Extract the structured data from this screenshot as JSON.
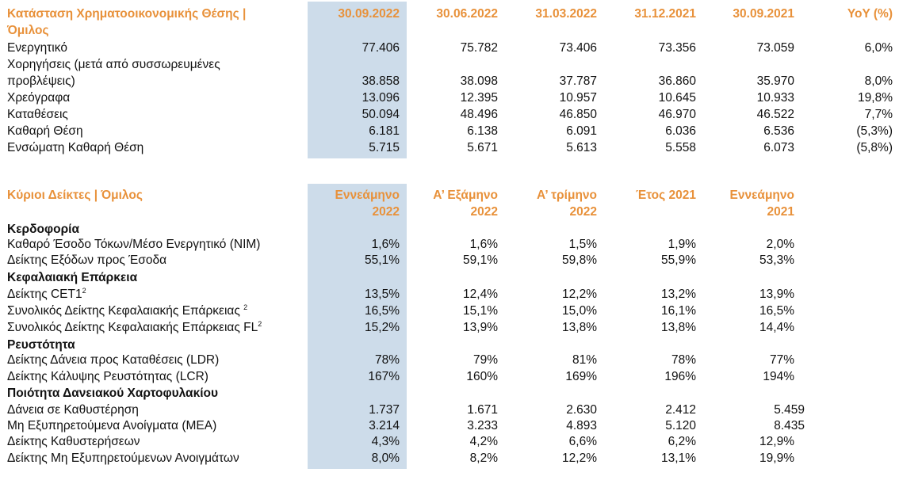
{
  "table1": {
    "title_line1": "Κατάσταση Χρηματοοικονομικής Θέσης |",
    "title_line2": "Όμιλος",
    "columns": [
      "30.09.2022",
      "30.06.2022",
      "31.03.2022",
      "31.12.2021",
      "30.09.2021",
      "YoY (%)"
    ],
    "rows": [
      {
        "label": "Ενεργητικό",
        "values": [
          "77.406",
          "75.782",
          "73.406",
          "73.356",
          "73.059",
          "6,0%"
        ]
      },
      {
        "label": "Χορηγήσεις (μετά από συσσωρευμένες",
        "label2": "προβλέψεις)",
        "values": [
          "38.858",
          "38.098",
          "37.787",
          "36.860",
          "35.970",
          "8,0%"
        ]
      },
      {
        "label": "Χρεόγραφα",
        "values": [
          "13.096",
          "12.395",
          "10.957",
          "10.645",
          "10.933",
          "19,8%"
        ]
      },
      {
        "label": "Καταθέσεις",
        "values": [
          "50.094",
          "48.496",
          "46.850",
          "46.970",
          "46.522",
          "7,7%"
        ]
      },
      {
        "label": "Καθαρή Θέση",
        "values": [
          "6.181",
          "6.138",
          "6.091",
          "6.036",
          "6.536",
          "(5,3%)"
        ]
      },
      {
        "label": "Ενσώματη Καθαρή Θέση",
        "values": [
          "5.715",
          "5.671",
          "5.613",
          "5.558",
          "6.073",
          "(5,8%)"
        ]
      }
    ]
  },
  "table2": {
    "title": "Κύριοι Δείκτες | Όμιλος",
    "columns": [
      {
        "line1": "Εννεάμηνο",
        "line2": "2022"
      },
      {
        "line1": "Α’ Εξάμηνο",
        "line2": "2022"
      },
      {
        "line1": "Α’ τρίμηνο",
        "line2": "2022"
      },
      {
        "line1": "Έτος 2021",
        "line2": ""
      },
      {
        "line1": "Εννεάμηνο",
        "line2": "2021"
      }
    ],
    "sections": {
      "profitability": "Κερδοφορία",
      "capital": "Κεφαλαιακή Επάρκεια",
      "liquidity": "Ρευστότητα",
      "quality": "Ποιότητα Δανειακού Χαρτοφυλακίου"
    },
    "rows": {
      "nim": {
        "label": "Καθαρό Έσοδο Τόκων/Μέσο Ενεργητικό (NIM)",
        "values": [
          "1,6%",
          "1,6%",
          "1,5%",
          "1,9%",
          "2,0%"
        ]
      },
      "cost_income": {
        "label": "Δείκτης Εξόδων προς Έσοδα",
        "values": [
          "55,1%",
          "59,1%",
          "59,8%",
          "55,9%",
          "53,3%"
        ]
      },
      "cet1": {
        "label": "Δείκτης CET1",
        "sup": "2",
        "values": [
          "13,5%",
          "12,4%",
          "12,2%",
          "13,2%",
          "13,9%"
        ]
      },
      "total_car": {
        "label": "Συνολικός Δείκτης Κεφαλαιακής Επάρκειας ",
        "sup": "2",
        "values": [
          "16,5%",
          "15,1%",
          "15,0%",
          "16,1%",
          "16,5%"
        ]
      },
      "total_car_fl": {
        "label": "Συνολικός Δείκτης Κεφαλαιακής Επάρκειας FL",
        "sup": "2",
        "values": [
          "15,2%",
          "13,9%",
          "13,8%",
          "13,8%",
          "14,4%"
        ]
      },
      "ldr": {
        "label": "Δείκτης Δάνεια προς Καταθέσεις (LDR)",
        "values": [
          "78%",
          "79%",
          "81%",
          "78%",
          "77%"
        ]
      },
      "lcr": {
        "label": "Δείκτης Κάλυψης Ρευστότητας (LCR)",
        "values": [
          "167%",
          "160%",
          "169%",
          "196%",
          "194%"
        ]
      },
      "arrears": {
        "label": "Δάνεια σε Καθυστέρηση",
        "values": [
          "1.737",
          "1.671",
          "2.630",
          "2.412",
          "5.459"
        ]
      },
      "npe": {
        "label": "Μη Εξυπηρετούμενα Ανοίγματα (ΜΕΑ)",
        "values": [
          "3.214",
          "3.233",
          "4.893",
          "5.120",
          "8.435"
        ]
      },
      "arrears_ratio": {
        "label": "Δείκτης Καθυστερήσεων",
        "values": [
          "4,3%",
          "4,2%",
          "6,6%",
          "6,2%",
          "12,9%"
        ]
      },
      "npe_ratio": {
        "label": "Δείκτης Μη Εξυπηρετούμενων Ανοιγμάτων",
        "values": [
          "8,0%",
          "8,2%",
          "12,2%",
          "13,1%",
          "19,9%"
        ]
      }
    }
  }
}
